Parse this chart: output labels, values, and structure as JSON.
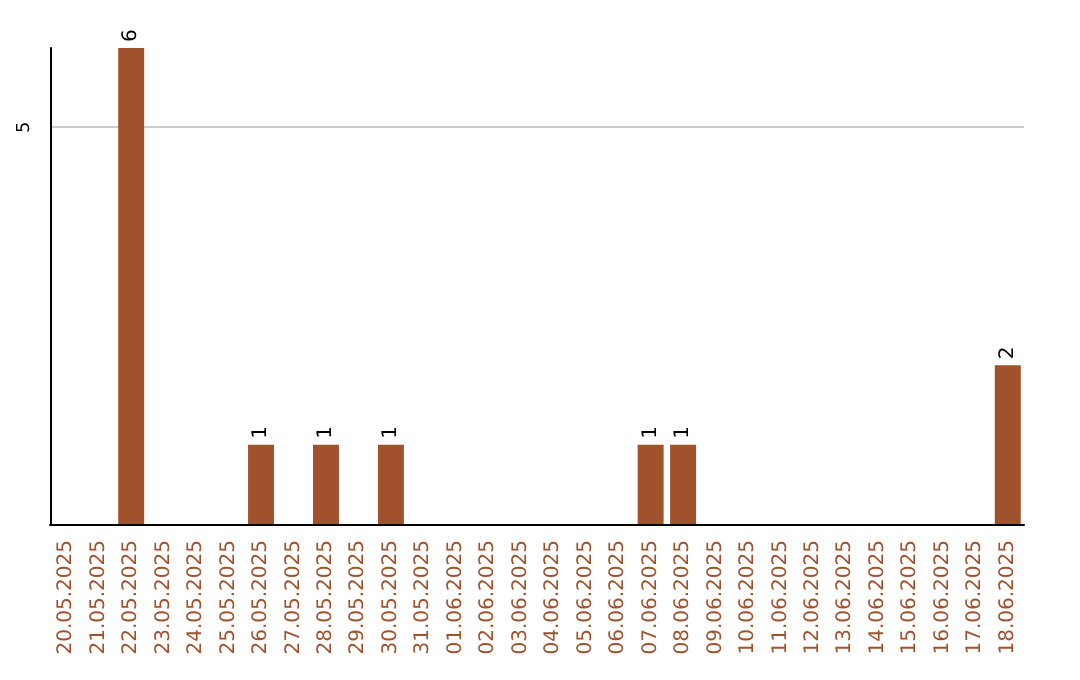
{
  "chart_data": {
    "type": "bar",
    "categories": [
      "20.05.2025",
      "21.05.2025",
      "22.05.2025",
      "23.05.2025",
      "24.05.2025",
      "25.05.2025",
      "26.05.2025",
      "27.05.2025",
      "28.05.2025",
      "29.05.2025",
      "30.05.2025",
      "31.05.2025",
      "01.06.2025",
      "02.06.2025",
      "03.06.2025",
      "04.06.2025",
      "05.06.2025",
      "06.06.2025",
      "07.06.2025",
      "08.06.2025",
      "09.06.2025",
      "10.06.2025",
      "11.06.2025",
      "12.06.2025",
      "13.06.2025",
      "14.06.2025",
      "15.06.2025",
      "16.06.2025",
      "17.06.2025",
      "18.06.2025"
    ],
    "values": [
      0,
      0,
      6,
      0,
      0,
      0,
      1,
      0,
      1,
      0,
      1,
      0,
      0,
      0,
      0,
      0,
      0,
      0,
      1,
      1,
      0,
      0,
      0,
      0,
      0,
      0,
      0,
      0,
      0,
      2
    ],
    "value_labels": [
      null,
      null,
      "6",
      null,
      null,
      null,
      "1",
      null,
      "1",
      null,
      "1",
      null,
      null,
      null,
      null,
      null,
      null,
      null,
      "1",
      "1",
      null,
      null,
      null,
      null,
      null,
      null,
      null,
      null,
      null,
      "2"
    ],
    "color": "#a0522d",
    "ylim": [
      0,
      6
    ],
    "yticks": [
      5
    ],
    "grid": "y"
  }
}
